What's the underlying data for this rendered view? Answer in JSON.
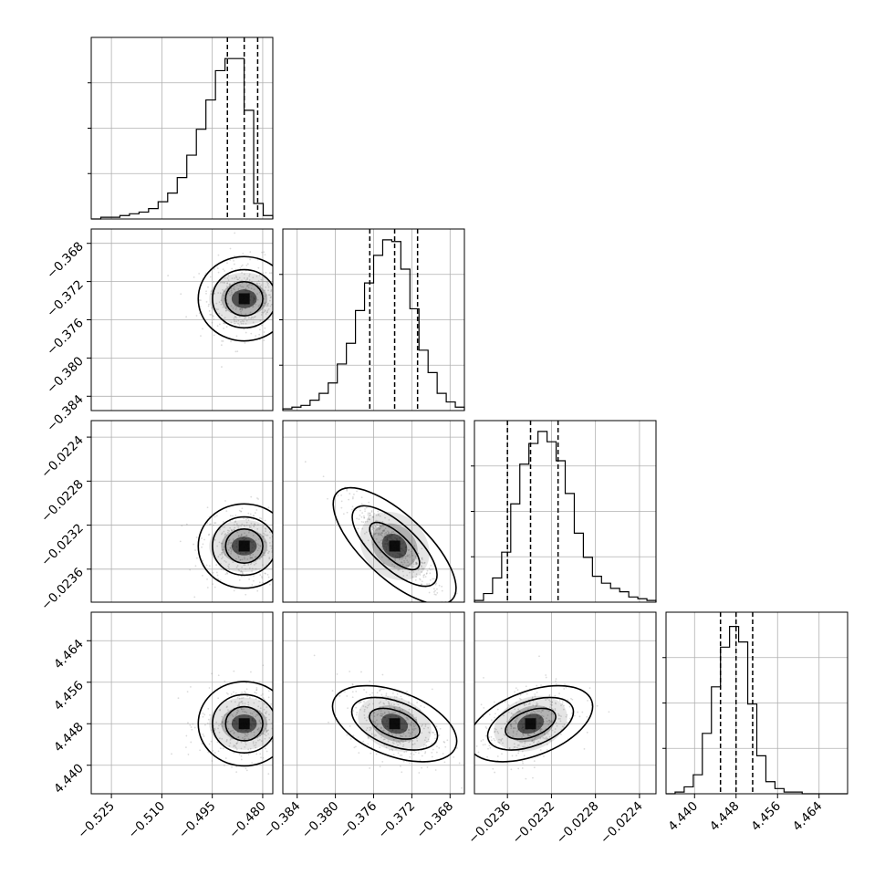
{
  "chart_data": {
    "type": "corner",
    "parameters": [
      {
        "ticks": [
          -0.525,
          -0.51,
          -0.495,
          -0.48
        ],
        "tick_labels": [
          "−0.525",
          "−0.510",
          "−0.495",
          "−0.480"
        ],
        "range": [
          -0.531,
          -0.477
        ],
        "median": -0.4855,
        "q16": -0.4905,
        "q84": -0.4815
      },
      {
        "ticks": [
          -0.384,
          -0.38,
          -0.376,
          -0.372,
          -0.368
        ],
        "tick_labels": [
          "−0.384",
          "−0.380",
          "−0.376",
          "−0.372",
          "−0.368"
        ],
        "range": [
          -0.3855,
          -0.3665
        ],
        "median": -0.3738,
        "q16": -0.3764,
        "q84": -0.3714
      },
      {
        "ticks": [
          -0.0236,
          -0.0232,
          -0.0228,
          -0.0224
        ],
        "tick_labels": [
          "−0.0236",
          "−0.0232",
          "−0.0228",
          "−0.0224"
        ],
        "range": [
          -0.0239,
          -0.02225
        ],
        "median": -0.02339,
        "q16": -0.0236,
        "q84": -0.02314
      },
      {
        "ticks": [
          4.44,
          4.448,
          4.456,
          4.464
        ],
        "tick_labels": [
          "4.440",
          "4.448",
          "4.456",
          "4.464"
        ],
        "range": [
          4.4345,
          4.4695
        ],
        "median": 4.448,
        "q16": 4.445,
        "q84": 4.4512
      }
    ],
    "diagonal_hist": [
      [
        0.0,
        0.01,
        0.01,
        0.02,
        0.03,
        0.04,
        0.06,
        0.1,
        0.15,
        0.24,
        0.37,
        0.52,
        0.69,
        0.86,
        0.93,
        0.93,
        0.63,
        0.09,
        0.02
      ],
      [
        0.01,
        0.02,
        0.03,
        0.06,
        0.1,
        0.16,
        0.27,
        0.39,
        0.58,
        0.74,
        0.9,
        0.99,
        0.98,
        0.82,
        0.59,
        0.35,
        0.22,
        0.1,
        0.05,
        0.02
      ],
      [
        0.01,
        0.05,
        0.14,
        0.29,
        0.57,
        0.8,
        0.92,
        0.99,
        0.93,
        0.82,
        0.63,
        0.4,
        0.26,
        0.15,
        0.11,
        0.08,
        0.06,
        0.03,
        0.02,
        0.01
      ],
      [
        0.0,
        0.01,
        0.04,
        0.11,
        0.35,
        0.62,
        0.85,
        0.97,
        0.88,
        0.52,
        0.22,
        0.07,
        0.03,
        0.01,
        0.01,
        0.0,
        0.0,
        0.0,
        0.0,
        0.0
      ]
    ],
    "pairs": [
      {
        "row": 1,
        "col": 0,
        "cx": -0.4855,
        "cy": -0.3738,
        "corr": 0.0
      },
      {
        "row": 2,
        "col": 0,
        "cx": -0.4855,
        "cy": -0.02339,
        "corr": 0.0
      },
      {
        "row": 2,
        "col": 1,
        "cx": -0.3738,
        "cy": -0.02339,
        "corr": -0.93
      },
      {
        "row": 3,
        "col": 0,
        "cx": -0.4855,
        "cy": 4.448,
        "corr": 0.0
      },
      {
        "row": 3,
        "col": 1,
        "cx": -0.3738,
        "cy": 4.448,
        "corr": -0.45
      },
      {
        "row": 3,
        "col": 2,
        "cx": -0.02339,
        "cy": 4.448,
        "corr": 0.45
      }
    ],
    "grid": true,
    "quantiles": [
      0.16,
      0.5,
      0.84
    ]
  }
}
